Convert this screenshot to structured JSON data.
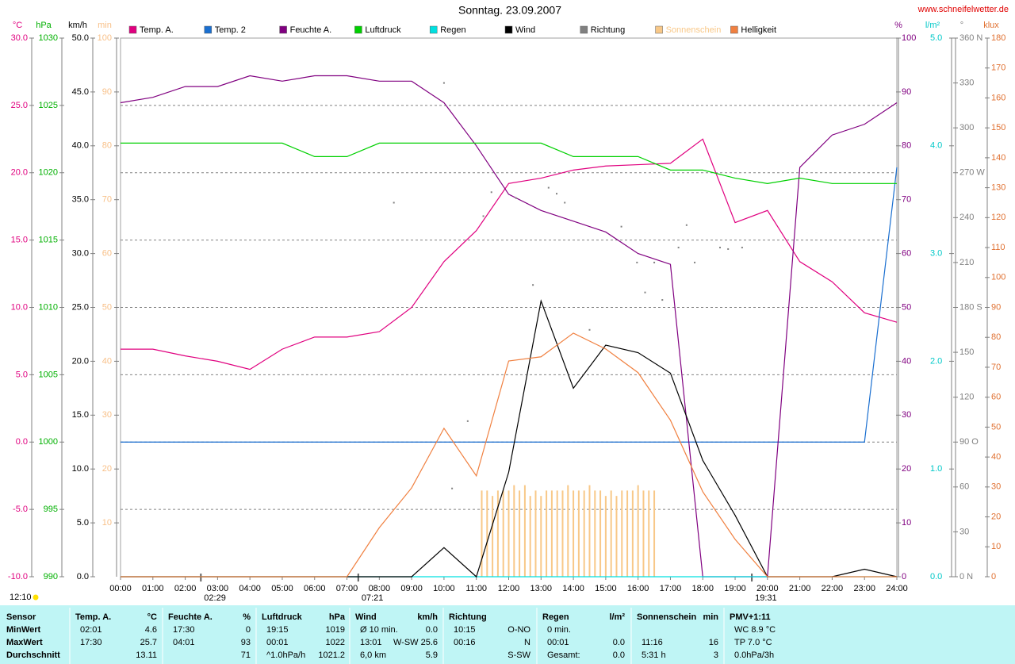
{
  "chart_data": {
    "type": "line",
    "title": "Sonntag. 23.09.2007",
    "source": "www.schneifelwetter.de",
    "grid": true,
    "day_length": "12:10",
    "xlim": [
      0,
      1440
    ],
    "xticks": [
      {
        "value": 0,
        "label": "00:00"
      },
      {
        "value": 60,
        "label": "01:00"
      },
      {
        "value": 120,
        "label": "02:00"
      },
      {
        "value": 180,
        "label": "03:00"
      },
      {
        "value": 240,
        "label": "04:00"
      },
      {
        "value": 300,
        "label": "05:00"
      },
      {
        "value": 360,
        "label": "06:00"
      },
      {
        "value": 420,
        "label": "07:00"
      },
      {
        "value": 480,
        "label": "08:00"
      },
      {
        "value": 540,
        "label": "09:00"
      },
      {
        "value": 600,
        "label": "10:00"
      },
      {
        "value": 660,
        "label": "11:00"
      },
      {
        "value": 720,
        "label": "12:00"
      },
      {
        "value": 780,
        "label": "13:00"
      },
      {
        "value": 840,
        "label": "14:00"
      },
      {
        "value": 900,
        "label": "15:00"
      },
      {
        "value": 960,
        "label": "16:00"
      },
      {
        "value": 1020,
        "label": "17:00"
      },
      {
        "value": 1080,
        "label": "18:00"
      },
      {
        "value": 1140,
        "label": "19:00"
      },
      {
        "value": 1200,
        "label": "20:00"
      },
      {
        "value": 1260,
        "label": "21:00"
      },
      {
        "value": 1320,
        "label": "22:00"
      },
      {
        "value": 1380,
        "label": "23:00"
      },
      {
        "value": 1440,
        "label": "24:00"
      }
    ],
    "annotations": [
      {
        "x": 149,
        "label": "02:29"
      },
      {
        "x": 441,
        "label": "07:21"
      },
      {
        "x": 1171,
        "label": "19:31"
      }
    ],
    "axes": [
      {
        "label": "°C",
        "color": "#e0007f",
        "lim": [
          -10,
          30
        ],
        "ticks": [
          {
            "value": -10,
            "label": "-10.0"
          },
          {
            "value": -5,
            "label": "-5.0"
          },
          {
            "value": 0,
            "label": "0.0"
          },
          {
            "value": 5,
            "label": "5.0"
          },
          {
            "value": 10,
            "label": "10.0"
          },
          {
            "value": 15,
            "label": "15.0"
          },
          {
            "value": 20,
            "label": "20.0"
          },
          {
            "value": 25,
            "label": "25.0"
          },
          {
            "value": 30,
            "label": "30.0"
          }
        ]
      },
      {
        "label": "hPa",
        "color": "#00b000",
        "lim": [
          990,
          1030
        ],
        "ticks": [
          990,
          995,
          1000,
          1005,
          1010,
          1015,
          1020,
          1025,
          1030
        ]
      },
      {
        "label": "km/h",
        "color": "#000000",
        "lim": [
          0,
          50
        ],
        "ticks": [
          {
            "value": 0,
            "label": "0.0"
          },
          {
            "value": 5,
            "label": "5.0"
          },
          {
            "value": 10,
            "label": "10.0"
          },
          {
            "value": 15,
            "label": "15.0"
          },
          {
            "value": 20,
            "label": "20.0"
          },
          {
            "value": 25,
            "label": "25.0"
          },
          {
            "value": 30,
            "label": "30.0"
          },
          {
            "value": 35,
            "label": "35.0"
          },
          {
            "value": 40,
            "label": "40.0"
          },
          {
            "value": 45,
            "label": "45.0"
          },
          {
            "value": 50,
            "label": "50.0"
          }
        ]
      },
      {
        "label": "min",
        "color": "#f8c088",
        "lim": [
          0,
          100
        ],
        "ticks": [
          10,
          20,
          30,
          40,
          50,
          60,
          70,
          80,
          90,
          100
        ]
      },
      {
        "label": "%",
        "color": "#800080",
        "lim": [
          0,
          100
        ],
        "ticks": [
          0,
          10,
          20,
          30,
          40,
          50,
          60,
          70,
          80,
          90,
          100
        ]
      },
      {
        "label": "l/m²",
        "color": "#00c8c8",
        "lim": [
          0,
          5
        ],
        "ticks": [
          {
            "value": 0,
            "label": "0.0"
          },
          {
            "value": 1,
            "label": "1.0"
          },
          {
            "value": 2,
            "label": "2.0"
          },
          {
            "value": 3,
            "label": "3.0"
          },
          {
            "value": 4,
            "label": "4.0"
          },
          {
            "value": 5,
            "label": "5.0"
          }
        ]
      },
      {
        "label": "°",
        "color": "#808080",
        "lim": [
          0,
          360
        ],
        "ticks": [
          {
            "value": 0,
            "label": "0 N"
          },
          30,
          60,
          {
            "value": 90,
            "label": "90 O"
          },
          120,
          150,
          {
            "value": 180,
            "label": "180 S"
          },
          210,
          240,
          {
            "value": 270,
            "label": "270 W"
          },
          300,
          330,
          {
            "value": 360,
            "label": "360 N"
          }
        ]
      },
      {
        "label": "klux",
        "color": "#e07030",
        "lim": [
          0,
          180
        ],
        "ticks": [
          0,
          10,
          20,
          30,
          40,
          50,
          60,
          70,
          80,
          90,
          100,
          110,
          120,
          130,
          140,
          150,
          160,
          170,
          180
        ]
      }
    ],
    "x": [
      0,
      60,
      120,
      180,
      240,
      300,
      360,
      420,
      480,
      540,
      600,
      660,
      720,
      780,
      840,
      900,
      960,
      1020,
      1080,
      1140,
      1200,
      1260,
      1320,
      1380,
      1440
    ],
    "series": [
      {
        "name": "Temp. A.",
        "type": "line",
        "axis": 0,
        "color": "#e0007f",
        "values": [
          6.9,
          6.9,
          6.4,
          6.0,
          5.4,
          6.9,
          7.8,
          7.8,
          8.2,
          10.0,
          13.4,
          15.7,
          19.2,
          19.6,
          20.2,
          20.5,
          20.6,
          20.7,
          22.5,
          16.3,
          17.2,
          13.4,
          11.9,
          9.6,
          8.9
        ]
      },
      {
        "name": "Temp. 2",
        "type": "line",
        "axis": 0,
        "color": "#1a6fd0",
        "values": [
          0,
          0,
          0,
          0,
          0,
          0,
          0,
          0,
          0,
          0,
          0,
          0,
          0,
          0,
          0,
          0,
          0,
          0,
          0,
          0,
          0,
          0,
          0,
          0,
          20.4
        ]
      },
      {
        "name": "Feuchte A.",
        "type": "line",
        "axis": 4,
        "color": "#800080",
        "values": [
          88,
          89,
          91,
          91,
          93,
          92,
          93,
          93,
          92,
          92,
          88,
          80,
          71,
          68,
          66,
          64,
          60,
          58,
          0,
          0,
          0,
          76,
          82,
          84,
          88
        ]
      },
      {
        "name": "Luftdruck",
        "type": "line",
        "axis": 1,
        "color": "#00d000",
        "values": [
          1022.2,
          1022.2,
          1022.2,
          1022.2,
          1022.2,
          1022.2,
          1021.2,
          1021.2,
          1022.2,
          1022.2,
          1022.2,
          1022.2,
          1022.2,
          1022.2,
          1021.2,
          1021.2,
          1021.2,
          1020.2,
          1020.2,
          1019.6,
          1019.2,
          1019.6,
          1019.2,
          1019.2,
          1019.2
        ]
      },
      {
        "name": "Regen",
        "type": "line",
        "axis": 5,
        "color": "#00e0e0",
        "values": [
          0,
          0,
          0,
          0,
          0,
          0,
          0,
          0,
          0,
          0,
          0,
          0,
          0,
          0,
          0,
          0,
          0,
          0,
          0,
          0,
          0,
          0,
          0,
          0,
          0
        ]
      },
      {
        "name": "Wind",
        "type": "line",
        "axis": 2,
        "color": "#000000",
        "values": [
          0,
          0,
          0,
          0,
          0,
          0,
          0,
          0,
          0,
          0,
          2.7,
          0,
          9.7,
          25.6,
          17.5,
          21.5,
          20.8,
          18.9,
          10.8,
          5.7,
          0,
          0,
          0,
          0.7,
          0
        ]
      },
      {
        "name": "Richtung",
        "type": "scatter",
        "axis": 6,
        "color": "#808080",
        "x": [
          507,
          600,
          615,
          644,
          673,
          688,
          734,
          765,
          794,
          809,
          824,
          870,
          929,
          958,
          973,
          990,
          1005,
          1035,
          1050,
          1065,
          1112,
          1127,
          1153
        ],
        "values": [
          250,
          330,
          59,
          104,
          241,
          257,
          253,
          195,
          260,
          256,
          250,
          165,
          234,
          210,
          190,
          210,
          185,
          220,
          235,
          210,
          220,
          219,
          220
        ]
      },
      {
        "name": "Sonnenschein",
        "type": "bar",
        "axis": 3,
        "color": "#f8c888",
        "x": [
          670,
          680,
          690,
          700,
          710,
          720,
          730,
          740,
          750,
          760,
          770,
          780,
          790,
          800,
          810,
          820,
          830,
          840,
          850,
          860,
          870,
          880,
          890,
          900,
          910,
          920,
          930,
          940,
          950,
          960,
          970,
          980,
          990
        ],
        "values": [
          16,
          16,
          15,
          16,
          16,
          16,
          17,
          16,
          17,
          15,
          16,
          15,
          16,
          16,
          16,
          16,
          17,
          16,
          16,
          16,
          17,
          16,
          16,
          15,
          16,
          15,
          16,
          16,
          16,
          17,
          16,
          16,
          16
        ]
      },
      {
        "name": "Helligkeit",
        "type": "line",
        "axis": 7,
        "color": "#f08040",
        "values": [
          0,
          0,
          0,
          0,
          0,
          0,
          0,
          0,
          16.4,
          29.7,
          49.6,
          33.7,
          72.1,
          73.5,
          81.4,
          76.1,
          68.2,
          52.3,
          28.4,
          12.5,
          0,
          0,
          0,
          0,
          0
        ]
      }
    ]
  },
  "table": {
    "sensor_label": "Sensor",
    "columns": [
      {
        "label": "Temp. A.",
        "unit": "°C"
      },
      {
        "label": "Feuchte A.",
        "unit": "%"
      },
      {
        "label": "Luftdruck",
        "unit": "hPa"
      },
      {
        "label": "Wind",
        "unit": "km/h"
      },
      {
        "label": "Richtung"
      },
      {
        "label": "Regen",
        "unit": "l/m²"
      },
      {
        "label": "Sonnenschein",
        "unit": "min"
      },
      {
        "label": "PMV+1:11"
      }
    ],
    "rows": [
      {
        "label": "MinWert",
        "cells": [
          {
            "left": "02:01",
            "right": "4.6"
          },
          {
            "left": "17:30",
            "right": "0"
          },
          {
            "left": "19:15",
            "right": "1019"
          },
          {
            "left": "Ø 10 min.",
            "right": "0.0"
          },
          {
            "left": "10:15",
            "right": "O-NO"
          },
          {
            "left": "0 min."
          },
          {},
          {
            "left": "WC 8.9 °C"
          }
        ]
      },
      {
        "label": "MaxWert",
        "cells": [
          {
            "left": "17:30",
            "right": "25.7"
          },
          {
            "left": "04:01",
            "right": "93"
          },
          {
            "left": "00:01",
            "right": "1022"
          },
          {
            "left": "13:01",
            "right": "W-SW 25.6"
          },
          {
            "left": "00:16",
            "right": "N"
          },
          {
            "left": "00:01",
            "right": "0.0"
          },
          {
            "left": "11:16",
            "right": "16"
          },
          {
            "left": "TP 7.0 °C"
          }
        ]
      },
      {
        "label": "Durchschnitt",
        "cells": [
          {
            "right": "13.11"
          },
          {
            "right": "71"
          },
          {
            "left": "^1.0hPa/h",
            "right": "1021.2"
          },
          {
            "left": "6,0 km",
            "right": "5.9"
          },
          {
            "right": "S-SW"
          },
          {
            "left": "Gesamt:",
            "right": "0.0"
          },
          {
            "left": "5:31 h",
            "right": "3"
          },
          {
            "left": "0.0hPa/3h"
          }
        ]
      }
    ]
  }
}
